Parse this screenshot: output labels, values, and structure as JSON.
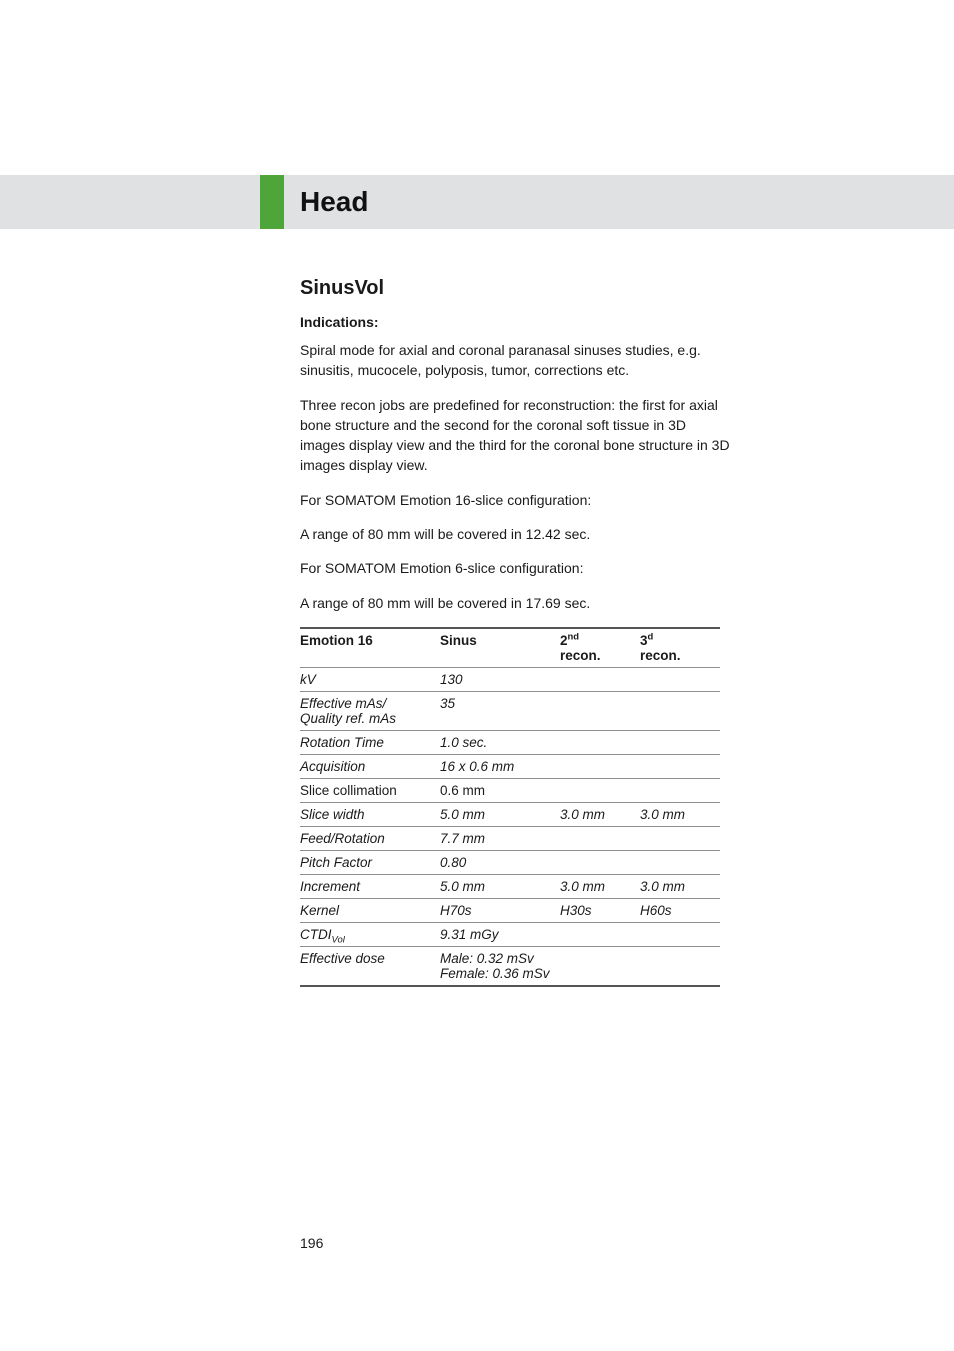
{
  "header": {
    "title": "Head"
  },
  "section": {
    "title": "SinusVol",
    "indications_label": "Indications:",
    "paragraphs": [
      "Spiral mode for axial and coronal paranasal sinuses studies, e.g. sinusitis, mucocele, polyposis, tumor, corrections etc.",
      "Three recon jobs are predefined for reconstruction: the first for axial bone structure and the second for the coronal soft tissue in 3D images display view and the third for the coronal bone structure in 3D images display view.",
      "For SOMATOM Emotion 16-slice configuration:",
      "A range of 80 mm will be covered in 12.42 sec.",
      "For SOMATOM Emotion 6-slice configuration:",
      "A range of 80 mm will be covered in 17.69 sec."
    ]
  },
  "table": {
    "header": {
      "c0": "Emotion 16",
      "c1": "Sinus",
      "c2_main": "2",
      "c2_sup": "nd",
      "c2_sub": "recon.",
      "c3_main": "3",
      "c3_sup": "d",
      "c3_sub": "recon."
    },
    "rows": {
      "kv": {
        "label": "kV",
        "c1": "130",
        "c2": "",
        "c3": ""
      },
      "mas": {
        "label_l1": "Effective mAs/",
        "label_l2": "Quality ref. mAs",
        "c1": "35",
        "c2": "",
        "c3": ""
      },
      "rotation": {
        "label": "Rotation Time",
        "c1": "1.0 sec.",
        "c2": "",
        "c3": ""
      },
      "acquisition": {
        "label": "Acquisition",
        "c1": "16 x 0.6 mm",
        "c2": "",
        "c3": ""
      },
      "slice_coll": {
        "label": "Slice collimation",
        "c1": "0.6 mm",
        "c2": "",
        "c3": ""
      },
      "slice_width": {
        "label": "Slice width",
        "c1": "5.0 mm",
        "c2": "3.0 mm",
        "c3": "3.0 mm"
      },
      "feed": {
        "label": "Feed/Rotation",
        "c1": "7.7 mm",
        "c2": "",
        "c3": ""
      },
      "pitch": {
        "label": "Pitch Factor",
        "c1": "0.80",
        "c2": "",
        "c3": ""
      },
      "increment": {
        "label": "Increment",
        "c1": "5.0 mm",
        "c2": "3.0 mm",
        "c3": "3.0 mm"
      },
      "kernel": {
        "label": "Kernel",
        "c1": "H70s",
        "c2": "H30s",
        "c3": "H60s"
      },
      "ctdi": {
        "label_main": "CTDI",
        "label_sub": "Vol",
        "c1": "9.31 mGy",
        "c2": "",
        "c3": ""
      },
      "dose": {
        "label": "Effective dose",
        "c1_l1": "Male: 0.32 mSv",
        "c1_l2": "Female: 0.36 mSv"
      }
    }
  },
  "page_number": "196"
}
